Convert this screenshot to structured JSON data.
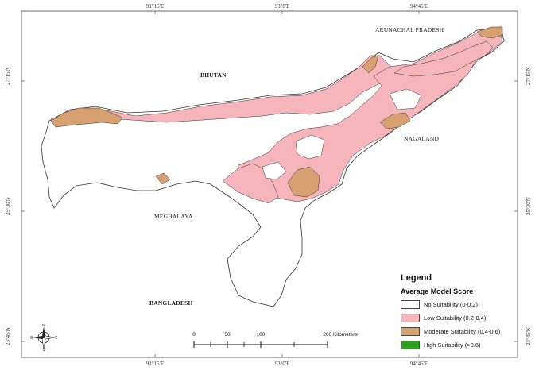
{
  "map": {
    "graticule": {
      "top": [
        "91°15'E",
        "93°0'E",
        "94°45'E"
      ],
      "bottom": [
        "91°15'E",
        "93°0'E",
        "94°45'E"
      ],
      "left": [
        "27°15'N",
        "25°30'N",
        "23°45'N"
      ],
      "right": [
        "27°15'N",
        "25°30'N",
        "23°45'N"
      ]
    },
    "places": {
      "arunachal": "ARUNACHAL PRADESH",
      "bhutan": "BHUTAN",
      "nagaland": "NAGALAND",
      "meghalaya": "MEGHALAYA",
      "bangladesh": "BANGLADESH"
    },
    "colors": {
      "no": "#ffffff",
      "low": "#f5b5bb",
      "moderate": "#d7a070",
      "high": "#2fa01e",
      "outline": "#333333"
    },
    "compass": {
      "n": "N",
      "s": "S",
      "e": "E",
      "w": "W"
    }
  },
  "legend": {
    "title": "Legend",
    "subtitle": "Average Model Score",
    "items": [
      {
        "label": "No Suitability (0-0.2)",
        "color": "#ffffff"
      },
      {
        "label": "Low Suitability (0.2-0.4)",
        "color": "#f5b5bb"
      },
      {
        "label": "Moderate Suitability (0.4-0.6)",
        "color": "#d7a070"
      },
      {
        "label": "High Suitability (>0.6)",
        "color": "#2fa01e"
      }
    ]
  },
  "scalebar": {
    "ticks": [
      "0",
      "50",
      "100",
      "200 Kilometers"
    ]
  }
}
